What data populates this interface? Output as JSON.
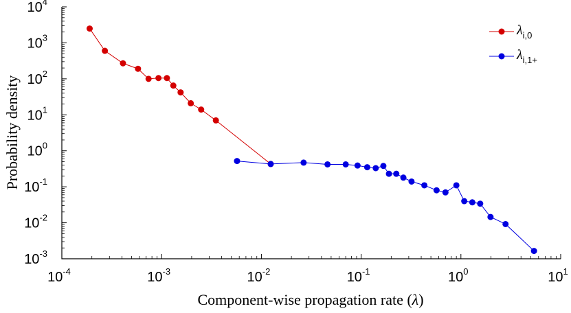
{
  "chart_data": {
    "type": "scatter",
    "xscale": "log",
    "yscale": "log",
    "xlabel_text": "Component-wise propagation rate (",
    "xlabel_symbol": "λ",
    "xlabel_close": ")",
    "ylabel": "Probability density",
    "xlim": [
      0.0001,
      10
    ],
    "ylim": [
      0.001,
      10000
    ],
    "x_ticks": [
      {
        "value": 0.0001,
        "base": "10",
        "exp": "-4"
      },
      {
        "value": 0.001,
        "base": "10",
        "exp": "-3"
      },
      {
        "value": 0.01,
        "base": "10",
        "exp": "-2"
      },
      {
        "value": 0.1,
        "base": "10",
        "exp": "-1"
      },
      {
        "value": 1,
        "base": "10",
        "exp": "0"
      },
      {
        "value": 10,
        "base": "10",
        "exp": "1"
      }
    ],
    "y_ticks": [
      {
        "value": 0.001,
        "base": "10",
        "exp": "-3"
      },
      {
        "value": 0.01,
        "base": "10",
        "exp": "-2"
      },
      {
        "value": 0.1,
        "base": "10",
        "exp": "-1"
      },
      {
        "value": 1,
        "base": "10",
        "exp": "0"
      },
      {
        "value": 10,
        "base": "10",
        "exp": "1"
      },
      {
        "value": 100,
        "base": "10",
        "exp": "2"
      },
      {
        "value": 1000,
        "base": "10",
        "exp": "3"
      },
      {
        "value": 10000,
        "base": "10",
        "exp": "4"
      }
    ],
    "legend_position": "top-right",
    "series": [
      {
        "name": "λi,0",
        "symbol": "λ",
        "subscript": "i,0",
        "color": "#d40000",
        "x": [
          0.00019,
          0.00027,
          0.00041,
          0.00058,
          0.00074,
          0.00093,
          0.00113,
          0.00131,
          0.00155,
          0.00196,
          0.00249,
          0.0035,
          0.0124
        ],
        "y": [
          2500,
          600,
          270,
          190,
          100,
          105,
          105,
          65,
          42,
          21,
          14,
          7,
          0.43
        ]
      },
      {
        "name": "λi,1+",
        "symbol": "λ",
        "subscript": "i,1+",
        "color": "#0000e0",
        "x": [
          0.0057,
          0.0124,
          0.0265,
          0.046,
          0.07,
          0.092,
          0.115,
          0.14,
          0.167,
          0.19,
          0.225,
          0.265,
          0.32,
          0.43,
          0.57,
          0.7,
          0.9,
          1.08,
          1.3,
          1.56,
          1.98,
          2.8,
          5.4
        ],
        "y": [
          0.52,
          0.43,
          0.47,
          0.42,
          0.42,
          0.39,
          0.35,
          0.33,
          0.38,
          0.23,
          0.23,
          0.18,
          0.14,
          0.11,
          0.08,
          0.07,
          0.11,
          0.04,
          0.037,
          0.034,
          0.0145,
          0.0092,
          0.00165
        ]
      }
    ]
  }
}
